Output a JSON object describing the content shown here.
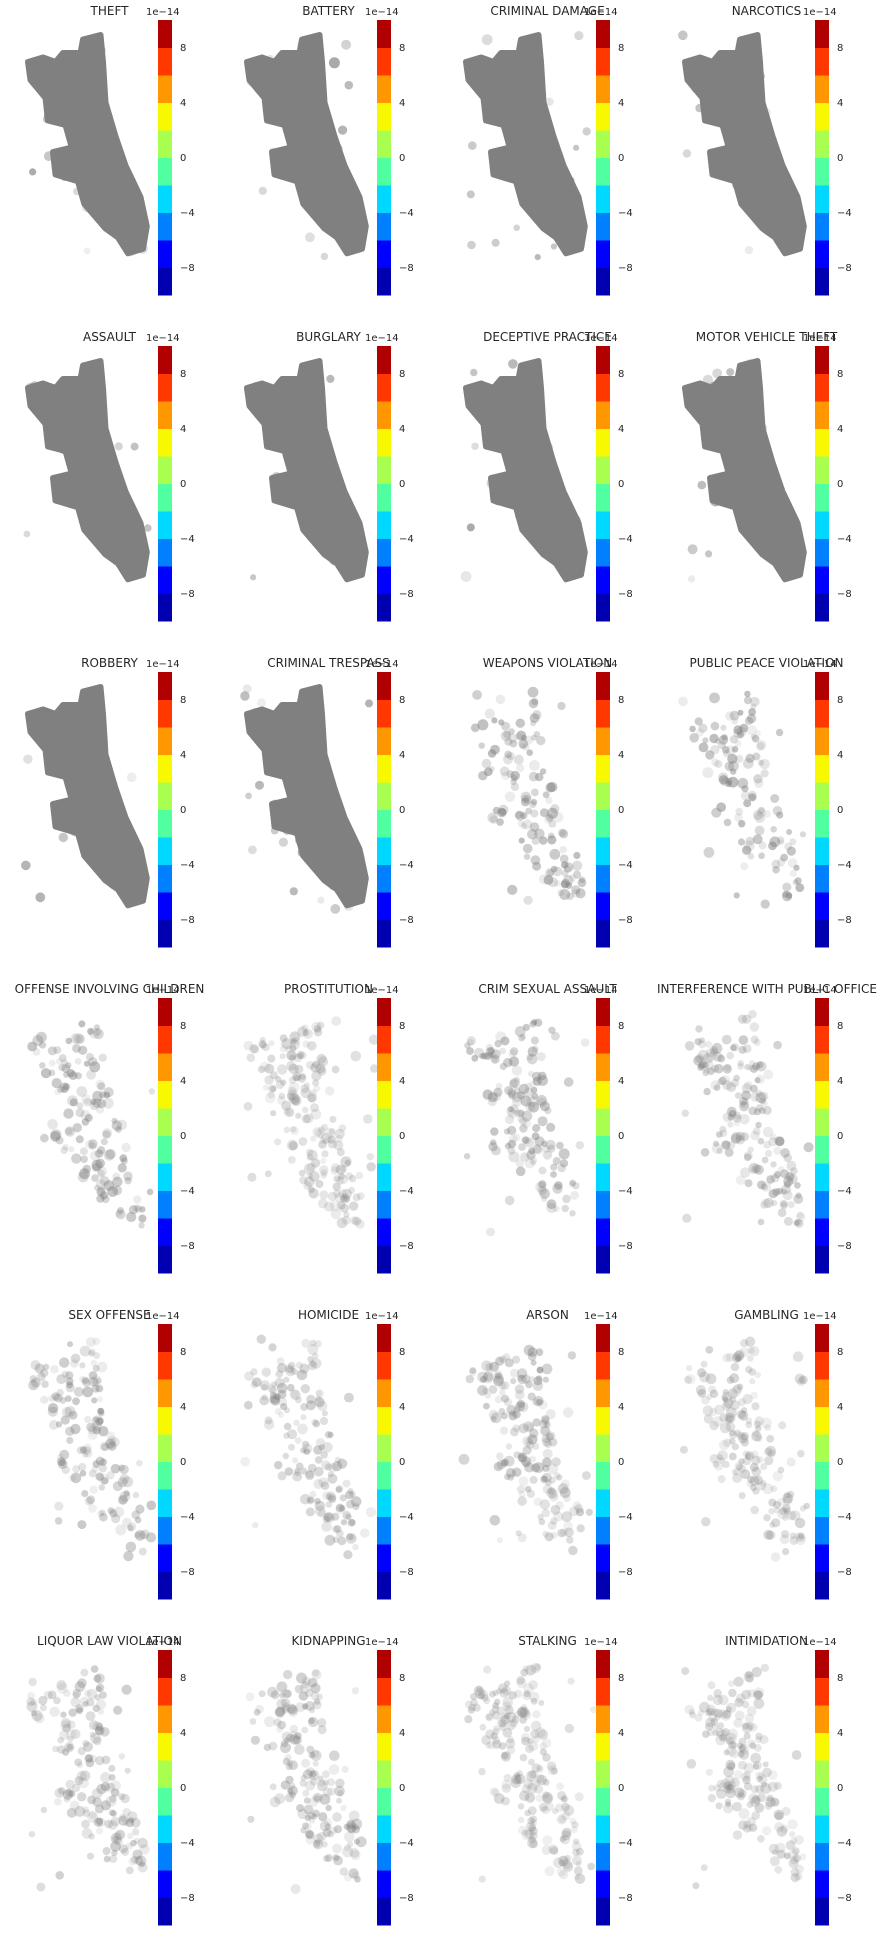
{
  "chart_data": {
    "type": "scatter",
    "layout": {
      "rows": 6,
      "cols": 4
    },
    "marker_color": "#808080",
    "colorbar": {
      "offset_text": "1e−14",
      "ticks": [
        8,
        4,
        0,
        -4,
        -8
      ],
      "tick_labels": [
        "8",
        "4",
        "0",
        "−4",
        "−8"
      ],
      "range": [
        -10,
        10
      ],
      "levels": 10,
      "colormap": "jet",
      "colors": [
        "#0000b0",
        "#0000ff",
        "#0080ff",
        "#00d8ff",
        "#50ffa0",
        "#a8ff50",
        "#f8f800",
        "#ff9800",
        "#ff3800",
        "#b00000"
      ]
    },
    "panels": [
      {
        "title": "THEFT",
        "density": 1.0
      },
      {
        "title": "BATTERY",
        "density": 1.0
      },
      {
        "title": "CRIMINAL DAMAGE",
        "density": 1.0
      },
      {
        "title": "NARCOTICS",
        "density": 0.95
      },
      {
        "title": "ASSAULT",
        "density": 1.0
      },
      {
        "title": "BURGLARY",
        "density": 1.0
      },
      {
        "title": "DECEPTIVE PRACTICE",
        "density": 1.0
      },
      {
        "title": "MOTOR VEHICLE THEFT",
        "density": 1.0
      },
      {
        "title": "ROBBERY",
        "density": 0.9
      },
      {
        "title": "CRIMINAL TRESPASS",
        "density": 0.9
      },
      {
        "title": "WEAPONS VIOLATION",
        "density": 0.75
      },
      {
        "title": "PUBLIC PEACE VIOLATION",
        "density": 0.75
      },
      {
        "title": "OFFENSE INVOLVING CHILDREN",
        "density": 0.7
      },
      {
        "title": "PROSTITUTION",
        "density": 0.35
      },
      {
        "title": "CRIM SEXUAL ASSAULT",
        "density": 0.65
      },
      {
        "title": "INTERFERENCE WITH PUBLIC OFFICER",
        "density": 0.55
      },
      {
        "title": "SEX OFFENSE",
        "density": 0.6
      },
      {
        "title": "HOMICIDE",
        "density": 0.5
      },
      {
        "title": "ARSON",
        "density": 0.55
      },
      {
        "title": "GAMBLING",
        "density": 0.4
      },
      {
        "title": "LIQUOR LAW VIOLATION",
        "density": 0.5
      },
      {
        "title": "KIDNAPPING",
        "density": 0.5
      },
      {
        "title": "STALKING",
        "density": 0.35
      },
      {
        "title": "INTIMIDATION",
        "density": 0.35
      }
    ]
  }
}
